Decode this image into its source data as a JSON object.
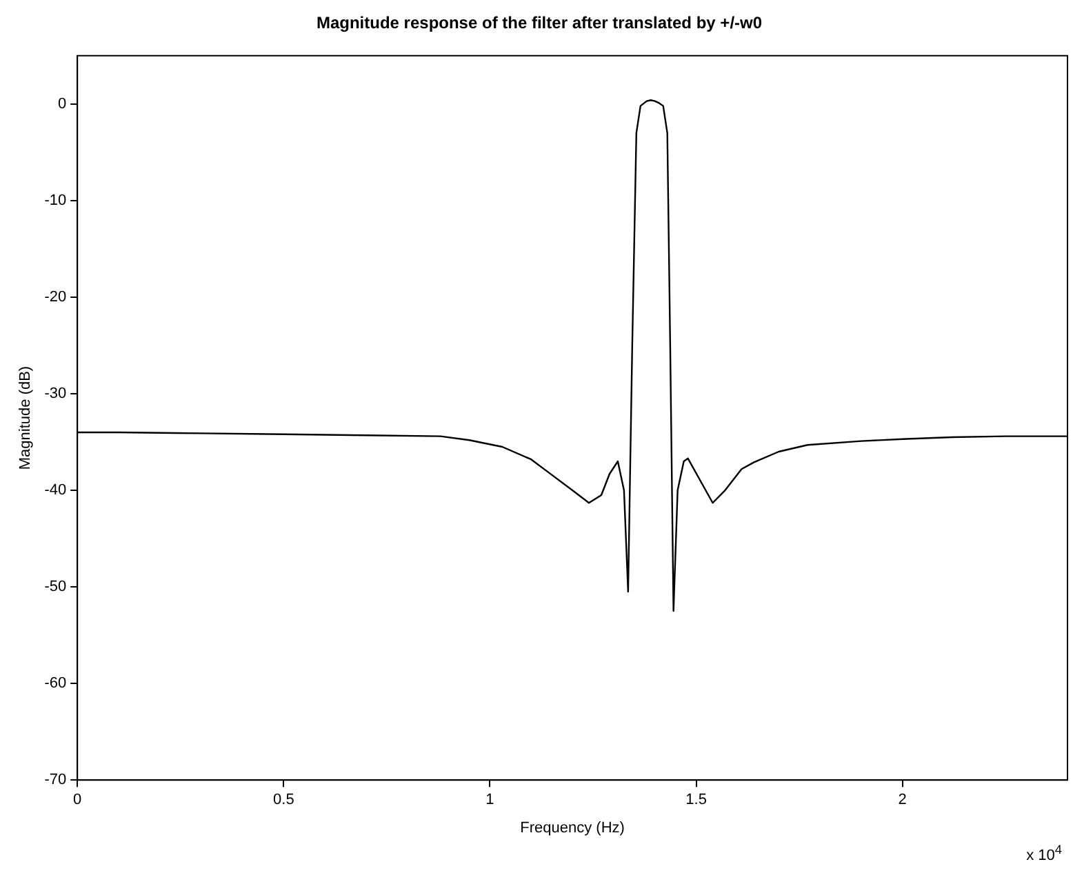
{
  "chart_data": {
    "type": "line",
    "title": "Magnitude response of the filter after translated by +/-w0",
    "xlabel": "Frequency (Hz)",
    "ylabel": "Magnitude (dB)",
    "annotations": [
      "x 10$^{4}$"
    ],
    "x": [
      0,
      0.1,
      0.3,
      0.5,
      0.7,
      0.88,
      0.95,
      1.03,
      1.1,
      1.15,
      1.2,
      1.24,
      1.27,
      1.29,
      1.31,
      1.325,
      1.335,
      1.345,
      1.355,
      1.365,
      1.38,
      1.39,
      1.4,
      1.41,
      1.42,
      1.43,
      1.437,
      1.445,
      1.455,
      1.47,
      1.48,
      1.51,
      1.54,
      1.57,
      1.61,
      1.64,
      1.7,
      1.77,
      1.9,
      2.0,
      2.12,
      2.25,
      2.4
    ],
    "series": [
      {
        "color": "#000000",
        "values": [
          -34,
          -34,
          -34.1,
          -34.2,
          -34.3,
          -34.4,
          -34.8,
          -35.5,
          -36.8,
          -38.4,
          -40,
          -41.3,
          -40.5,
          -38.3,
          -37,
          -40,
          -50.5,
          -25,
          -3,
          -0.2,
          0.3,
          0.4,
          0.3,
          0.1,
          -0.2,
          -3,
          -25,
          -52.5,
          -40,
          -37,
          -36.7,
          -39,
          -41.3,
          -40,
          -37.8,
          -37.1,
          -36,
          -35.3,
          -34.9,
          -34.7,
          -34.5,
          -34.4,
          -34.4
        ]
      }
    ],
    "xlim": [
      0,
      2.4
    ],
    "xticks": [
      0,
      0.5,
      1,
      1.5,
      2
    ],
    "ylim": [
      -70,
      5
    ],
    "yticks": [
      0,
      -10,
      -20,
      -30,
      -40,
      -50,
      -60,
      -70
    ],
    "grid": false,
    "legend": false,
    "marker": "none",
    "line_style": "solid"
  }
}
